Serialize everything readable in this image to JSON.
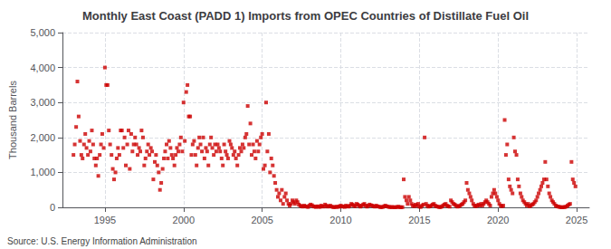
{
  "chart_data": {
    "type": "scatter",
    "title": "Monthly East Coast (PADD 1) Imports from OPEC Countries of Distillate Fuel Oil",
    "ylabel": "Thousand Barrels",
    "annotation": "Source: U.S. Energy Information Administration",
    "color": "#cc0000",
    "marker": "square",
    "grid": true,
    "xlim": [
      1992.3,
      2025.8
    ],
    "xticks": [
      1995,
      2000,
      2005,
      2010,
      2015,
      2020,
      2025
    ],
    "ylim": [
      0,
      5000
    ],
    "yticks": [
      0,
      {
        "value": 1000,
        "label": "1,000"
      },
      {
        "value": 2000,
        "label": "2,000"
      },
      {
        "value": 3000,
        "label": "3,000"
      },
      {
        "value": 4000,
        "label": "4,000"
      },
      {
        "value": 5000,
        "label": "5,000"
      }
    ],
    "x": [
      1993.0,
      1993.08,
      1993.17,
      1993.25,
      1993.33,
      1993.42,
      1993.5,
      1993.58,
      1993.67,
      1993.75,
      1993.83,
      1993.92,
      1994.0,
      1994.08,
      1994.17,
      1994.25,
      1994.33,
      1994.42,
      1994.5,
      1994.58,
      1994.67,
      1994.75,
      1994.83,
      1994.92,
      1995.0,
      1995.08,
      1995.17,
      1995.25,
      1995.33,
      1995.42,
      1995.5,
      1995.58,
      1995.67,
      1995.75,
      1995.83,
      1995.92,
      1996.0,
      1996.08,
      1996.17,
      1996.25,
      1996.33,
      1996.42,
      1996.5,
      1996.58,
      1996.67,
      1996.75,
      1996.83,
      1996.92,
      1997.0,
      1997.08,
      1997.17,
      1997.25,
      1997.33,
      1997.42,
      1997.5,
      1997.58,
      1997.67,
      1997.75,
      1997.83,
      1997.92,
      1998.0,
      1998.08,
      1998.17,
      1998.25,
      1998.33,
      1998.42,
      1998.5,
      1998.58,
      1998.67,
      1998.75,
      1998.83,
      1998.92,
      1999.0,
      1999.08,
      1999.17,
      1999.25,
      1999.33,
      1999.42,
      1999.5,
      1999.58,
      1999.67,
      1999.75,
      1999.83,
      1999.92,
      2000.0,
      2000.08,
      2000.17,
      2000.25,
      2000.33,
      2000.42,
      2000.5,
      2000.58,
      2000.67,
      2000.75,
      2000.83,
      2000.92,
      2001.0,
      2001.08,
      2001.17,
      2001.25,
      2001.33,
      2001.42,
      2001.5,
      2001.58,
      2001.67,
      2001.75,
      2001.83,
      2001.92,
      2002.0,
      2002.08,
      2002.17,
      2002.25,
      2002.33,
      2002.42,
      2002.5,
      2002.58,
      2002.67,
      2002.75,
      2002.83,
      2002.92,
      2003.0,
      2003.08,
      2003.17,
      2003.25,
      2003.33,
      2003.42,
      2003.5,
      2003.58,
      2003.67,
      2003.75,
      2003.83,
      2003.92,
      2004.0,
      2004.08,
      2004.17,
      2004.25,
      2004.33,
      2004.42,
      2004.5,
      2004.58,
      2004.67,
      2004.75,
      2004.83,
      2004.92,
      2005.0,
      2005.08,
      2005.17,
      2005.25,
      2005.33,
      2005.42,
      2005.5,
      2005.58,
      2005.67,
      2005.75,
      2005.83,
      2005.92,
      2006.0,
      2006.08,
      2006.17,
      2006.25,
      2006.33,
      2006.42,
      2006.5,
      2006.58,
      2006.67,
      2006.75,
      2006.83,
      2006.92,
      2007.0,
      2007.08,
      2007.17,
      2007.25,
      2007.33,
      2007.42,
      2007.5,
      2007.58,
      2007.67,
      2007.75,
      2007.83,
      2007.92,
      2008.0,
      2008.08,
      2008.17,
      2008.25,
      2008.33,
      2008.42,
      2008.5,
      2008.58,
      2008.67,
      2008.75,
      2008.83,
      2008.92,
      2009.0,
      2009.08,
      2009.17,
      2009.25,
      2009.33,
      2009.42,
      2009.5,
      2009.58,
      2009.67,
      2009.75,
      2009.83,
      2009.92,
      2010.0,
      2010.08,
      2010.17,
      2010.25,
      2010.33,
      2010.42,
      2010.5,
      2010.58,
      2010.67,
      2010.75,
      2010.83,
      2010.92,
      2011.0,
      2011.08,
      2011.17,
      2011.25,
      2011.33,
      2011.42,
      2011.5,
      2011.58,
      2011.67,
      2011.75,
      2011.83,
      2011.92,
      2012.0,
      2012.08,
      2012.17,
      2012.25,
      2012.33,
      2012.42,
      2012.5,
      2012.58,
      2012.67,
      2012.75,
      2012.83,
      2012.92,
      2013.0,
      2013.08,
      2013.17,
      2013.25,
      2013.33,
      2013.42,
      2013.5,
      2013.58,
      2013.67,
      2013.75,
      2013.83,
      2013.92,
      2014.0,
      2014.08,
      2014.17,
      2014.25,
      2014.33,
      2014.42,
      2014.5,
      2014.58,
      2014.67,
      2014.75,
      2014.83,
      2014.92,
      2015.0,
      2015.08,
      2015.17,
      2015.25,
      2015.33,
      2015.42,
      2015.5,
      2015.58,
      2015.67,
      2015.75,
      2015.83,
      2015.92,
      2016.0,
      2016.08,
      2016.17,
      2016.25,
      2016.33,
      2016.42,
      2016.5,
      2016.58,
      2016.67,
      2016.75,
      2016.83,
      2016.92,
      2017.0,
      2017.08,
      2017.17,
      2017.25,
      2017.33,
      2017.42,
      2017.5,
      2017.58,
      2017.67,
      2017.75,
      2017.83,
      2017.92,
      2018.0,
      2018.08,
      2018.17,
      2018.25,
      2018.33,
      2018.42,
      2018.5,
      2018.58,
      2018.67,
      2018.75,
      2018.83,
      2018.92,
      2019.0,
      2019.08,
      2019.17,
      2019.25,
      2019.33,
      2019.42,
      2019.5,
      2019.58,
      2019.67,
      2019.75,
      2019.83,
      2019.92,
      2020.0,
      2020.08,
      2020.17,
      2020.25,
      2020.33,
      2020.42,
      2020.5,
      2020.58,
      2020.67,
      2020.75,
      2020.83,
      2020.92,
      2021.0,
      2021.08,
      2021.17,
      2021.25,
      2021.33,
      2021.42,
      2021.5,
      2021.58,
      2021.67,
      2021.75,
      2021.83,
      2021.92,
      2022.0,
      2022.08,
      2022.17,
      2022.25,
      2022.33,
      2022.42,
      2022.5,
      2022.58,
      2022.67,
      2022.75,
      2022.83,
      2022.92,
      2023.0,
      2023.08,
      2023.17,
      2023.25,
      2023.33,
      2023.42,
      2023.5,
      2023.58,
      2023.67,
      2023.75,
      2023.83,
      2023.92,
      2024.0,
      2024.08,
      2024.17,
      2024.25,
      2024.33,
      2024.42,
      2024.5,
      2024.58,
      2024.67,
      2024.75,
      2024.83,
      2024.92
    ],
    "values": [
      1500,
      1800,
      2300,
      3600,
      2600,
      1900,
      1500,
      1400,
      1800,
      2100,
      1700,
      1500,
      1900,
      1600,
      2200,
      1800,
      1400,
      1200,
      1400,
      900,
      1500,
      1800,
      2100,
      1700,
      4000,
      3500,
      3500,
      2200,
      1800,
      1500,
      1100,
      800,
      1000,
      1400,
      1700,
      1500,
      2200,
      2200,
      1700,
      2000,
      1200,
      1800,
      2200,
      1100,
      2100,
      1600,
      1800,
      2000,
      1800,
      1500,
      1700,
      1600,
      2200,
      2000,
      1200,
      1400,
      1600,
      1800,
      1500,
      1700,
      1600,
      800,
      1300,
      1500,
      1200,
      1000,
      500,
      700,
      1100,
      1400,
      1600,
      1800,
      1400,
      1900,
      1700,
      1500,
      1400,
      1200,
      1500,
      1700,
      1600,
      1800,
      2000,
      1600,
      3000,
      1900,
      3300,
      3500,
      2600,
      2600,
      1500,
      1800,
      1900,
      1500,
      1200,
      1700,
      2000,
      1800,
      1600,
      2000,
      1400,
      1700,
      1600,
      1200,
      1800,
      2000,
      1700,
      1500,
      1800,
      1600,
      1800,
      1700,
      1600,
      1400,
      1200,
      1800,
      1600,
      1500,
      1400,
      1900,
      1800,
      1700,
      1500,
      1600,
      1400,
      1200,
      1500,
      1700,
      1600,
      1800,
      1700,
      2000,
      2100,
      2900,
      1800,
      2400,
      1500,
      1800,
      1600,
      1400,
      1900,
      1600,
      1800,
      2000,
      2100,
      1100,
      1200,
      3000,
      1600,
      2100,
      1000,
      1400,
      1200,
      900,
      700,
      500,
      300,
      400,
      200,
      500,
      100,
      300,
      400,
      200,
      100,
      50,
      100,
      200,
      150,
      100,
      200,
      150,
      80,
      50,
      30,
      20,
      50,
      30,
      20,
      10,
      50,
      80,
      60,
      30,
      20,
      10,
      30,
      20,
      10,
      50,
      30,
      20,
      80,
      50,
      20,
      30,
      50,
      20,
      10,
      5,
      10,
      20,
      10,
      30,
      50,
      20,
      30,
      10,
      50,
      30,
      20,
      50,
      100,
      80,
      50,
      30,
      100,
      80,
      50,
      20,
      50,
      80,
      100,
      50,
      20,
      50,
      80,
      60,
      50,
      30,
      20,
      50,
      30,
      20,
      10,
      5,
      10,
      30,
      50,
      30,
      20,
      10,
      5,
      10,
      5,
      3,
      5,
      10,
      20,
      5,
      3,
      5,
      800,
      300,
      200,
      100,
      300,
      200,
      100,
      50,
      30,
      80,
      50,
      100,
      20,
      10,
      50,
      80,
      2000,
      100,
      50,
      20,
      30,
      50,
      80,
      100,
      50,
      30,
      20,
      10,
      5,
      20,
      50,
      80,
      100,
      50,
      30,
      20,
      200,
      150,
      100,
      80,
      50,
      20,
      30,
      50,
      80,
      100,
      150,
      200,
      700,
      500,
      400,
      300,
      200,
      100,
      50,
      30,
      50,
      80,
      50,
      100,
      50,
      100,
      150,
      200,
      150,
      100,
      50,
      300,
      400,
      500,
      400,
      300,
      200,
      100,
      50,
      30,
      50,
      2500,
      1500,
      1800,
      800,
      600,
      500,
      400,
      2000,
      1600,
      1500,
      800,
      600,
      400,
      300,
      200,
      150,
      100,
      50,
      100,
      30,
      50,
      80,
      100,
      150,
      200,
      300,
      400,
      500,
      600,
      700,
      800,
      1300,
      800,
      600,
      400,
      300,
      200,
      150,
      100,
      50,
      30,
      20,
      10,
      5,
      3,
      5,
      10,
      20,
      50,
      80,
      100,
      1300,
      800,
      700,
      600
    ]
  }
}
